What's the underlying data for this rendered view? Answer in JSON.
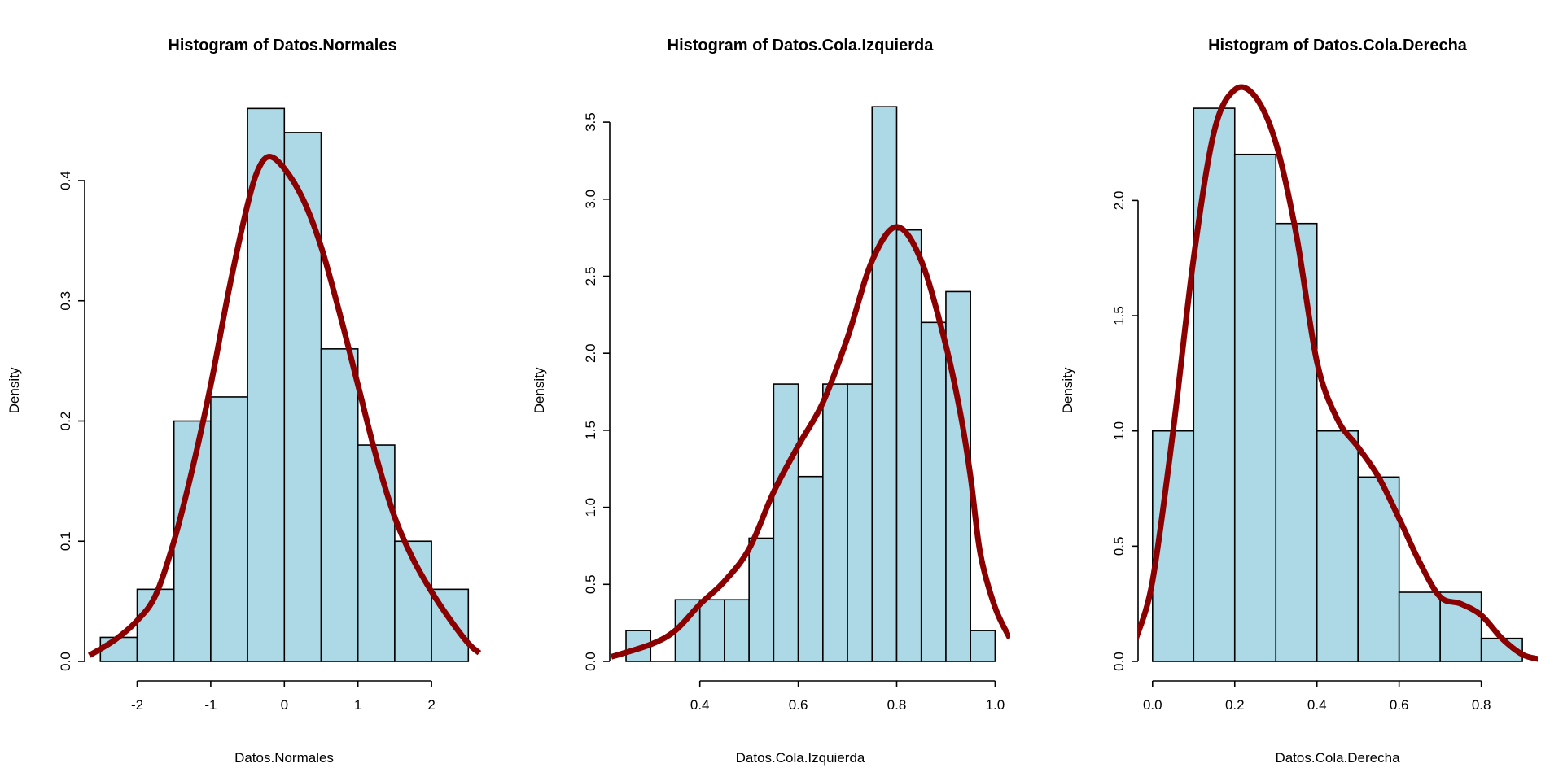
{
  "chart_data": [
    {
      "type": "bar",
      "title": "Histogram of Datos.Normales",
      "xlabel": "Datos.Normales",
      "ylabel": "Density",
      "bin_edges": [
        -2.5,
        -2.0,
        -1.5,
        -1.0,
        -0.5,
        0.0,
        0.5,
        1.0,
        1.5,
        2.0,
        2.5
      ],
      "values": [
        0.02,
        0.06,
        0.2,
        0.22,
        0.46,
        0.44,
        0.26,
        0.18,
        0.1,
        0.06
      ],
      "xticks": [
        -2,
        -1,
        0,
        1,
        2
      ],
      "xtick_labels": [
        "-2",
        "-1",
        "0",
        "1",
        "2"
      ],
      "yticks": [
        0,
        0.1,
        0.2,
        0.3,
        0.4
      ],
      "ytick_labels": [
        "0.0",
        "0.1",
        "0.2",
        "0.3",
        "0.4"
      ],
      "bar_color": "#ADD8E6",
      "density_curve": {
        "color": "#8B0000",
        "x": [
          -2.65,
          -2.3,
          -2.0,
          -1.75,
          -1.5,
          -1.25,
          -1.0,
          -0.75,
          -0.5,
          -0.35,
          -0.2,
          0.0,
          0.25,
          0.5,
          0.75,
          1.0,
          1.25,
          1.5,
          1.75,
          2.0,
          2.25,
          2.5,
          2.65
        ],
        "y": [
          0.005,
          0.018,
          0.034,
          0.055,
          0.1,
          0.16,
          0.23,
          0.31,
          0.38,
          0.41,
          0.42,
          0.41,
          0.385,
          0.345,
          0.29,
          0.23,
          0.17,
          0.12,
          0.085,
          0.058,
          0.035,
          0.015,
          0.007
        ]
      }
    },
    {
      "type": "bar",
      "title": "Histogram of Datos.Cola.Izquierda",
      "xlabel": "Datos.Cola.Izquierda",
      "ylabel": "Density",
      "bin_edges": [
        0.25,
        0.3,
        0.35,
        0.4,
        0.45,
        0.5,
        0.55,
        0.6,
        0.65,
        0.7,
        0.75,
        0.8,
        0.85,
        0.9,
        0.95,
        1.0
      ],
      "values": [
        0.2,
        0.0,
        0.4,
        0.4,
        0.4,
        0.8,
        1.8,
        1.2,
        1.8,
        1.8,
        3.6,
        2.8,
        2.2,
        2.4,
        0.2
      ],
      "xticks": [
        0.4,
        0.6,
        0.8,
        1.0
      ],
      "xtick_labels": [
        "0.4",
        "0.6",
        "0.8",
        "1.0"
      ],
      "yticks": [
        0,
        0.5,
        1.0,
        1.5,
        2.0,
        2.5,
        3.0,
        3.5
      ],
      "ytick_labels": [
        "0.0",
        "0.5",
        "1.0",
        "1.5",
        "2.0",
        "2.5",
        "3.0",
        "3.5"
      ],
      "bar_color": "#ADD8E6",
      "density_curve": {
        "color": "#8B0000",
        "x": [
          0.22,
          0.3,
          0.35,
          0.4,
          0.45,
          0.5,
          0.55,
          0.6,
          0.65,
          0.7,
          0.75,
          0.8,
          0.85,
          0.9,
          0.93,
          0.95,
          0.97,
          1.0,
          1.03
        ],
        "y": [
          0.03,
          0.11,
          0.2,
          0.37,
          0.52,
          0.73,
          1.1,
          1.4,
          1.68,
          2.1,
          2.6,
          2.82,
          2.6,
          2.05,
          1.6,
          1.2,
          0.7,
          0.35,
          0.15
        ]
      }
    },
    {
      "type": "bar",
      "title": "Histogram of Datos.Cola.Derecha",
      "xlabel": "Datos.Cola.Derecha",
      "ylabel": "Density",
      "bin_edges": [
        0.0,
        0.1,
        0.2,
        0.3,
        0.4,
        0.5,
        0.6,
        0.7,
        0.8,
        0.9
      ],
      "values": [
        1.0,
        2.4,
        2.2,
        1.9,
        1.0,
        0.8,
        0.3,
        0.3,
        0.1
      ],
      "xticks": [
        0.0,
        0.2,
        0.4,
        0.6,
        0.8
      ],
      "xtick_labels": [
        "0.0",
        "0.2",
        "0.4",
        "0.6",
        "0.8"
      ],
      "yticks": [
        0,
        0.5,
        1.0,
        1.5,
        2.0
      ],
      "ytick_labels": [
        "0.0",
        "0.5",
        "1.0",
        "1.5",
        "2.0"
      ],
      "bar_color": "#ADD8E6",
      "density_curve": {
        "color": "#8B0000",
        "x": [
          -0.04,
          0.0,
          0.05,
          0.1,
          0.15,
          0.2,
          0.25,
          0.3,
          0.35,
          0.4,
          0.45,
          0.5,
          0.55,
          0.6,
          0.65,
          0.7,
          0.75,
          0.8,
          0.85,
          0.9,
          0.94
        ],
        "y": [
          0.1,
          0.35,
          1.0,
          1.75,
          2.3,
          2.48,
          2.45,
          2.25,
          1.85,
          1.3,
          1.05,
          0.93,
          0.8,
          0.62,
          0.43,
          0.28,
          0.25,
          0.2,
          0.1,
          0.03,
          0.01
        ]
      }
    }
  ]
}
